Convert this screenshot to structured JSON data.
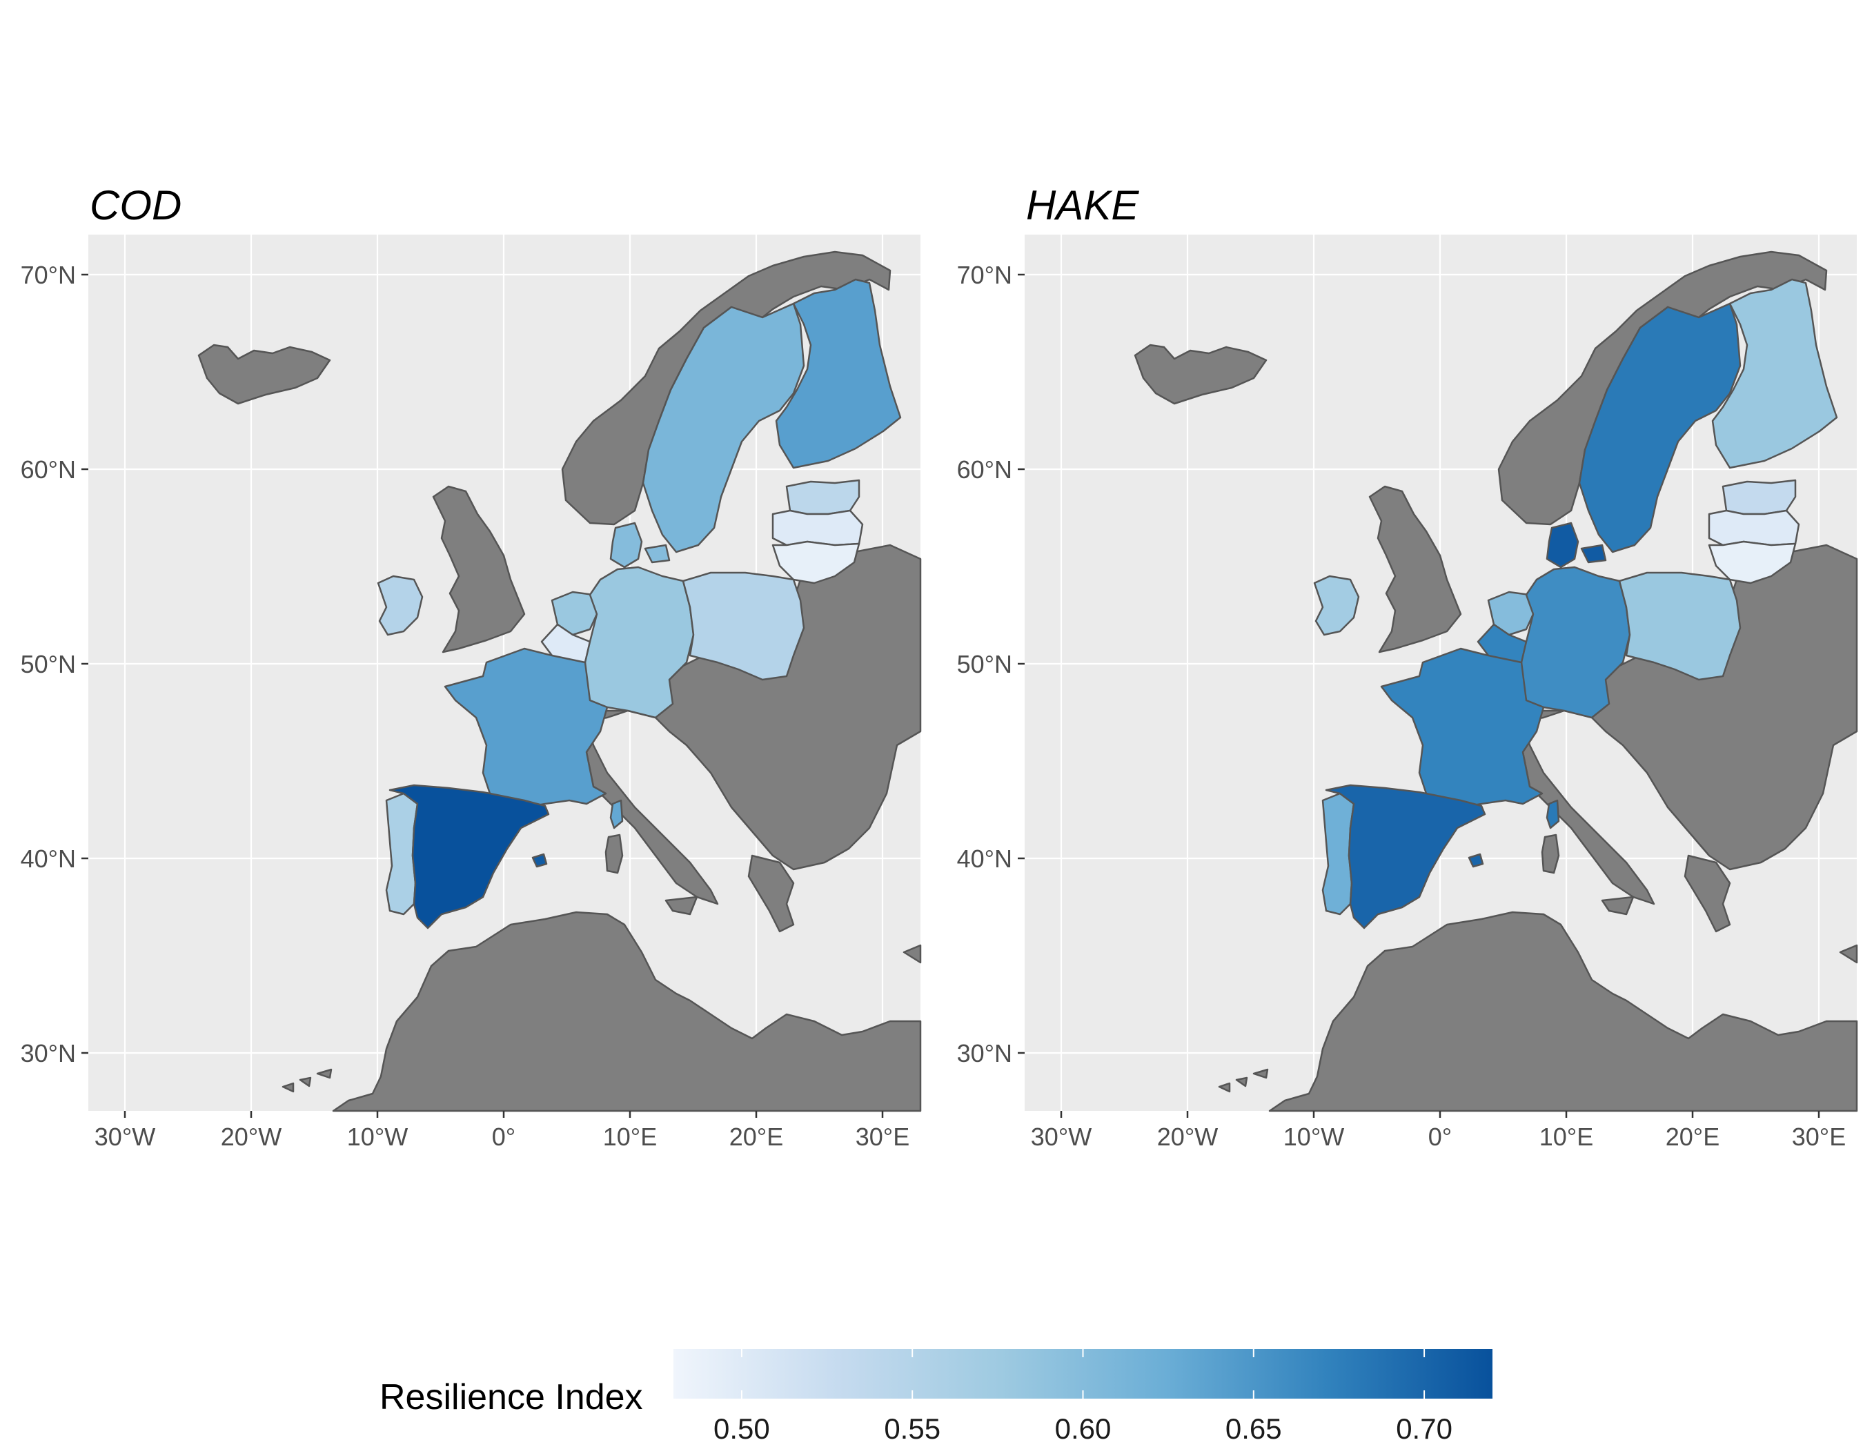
{
  "panels": [
    {
      "id": "cod",
      "title": "COD",
      "values": {
        "spain": 0.72,
        "portugal": 0.56,
        "france": 0.64,
        "ireland": 0.55,
        "belgium": 0.5,
        "netherlands": 0.58,
        "germany": 0.58,
        "denmark": 0.6,
        "poland": 0.55,
        "sweden": 0.61,
        "finland": 0.64,
        "estonia": 0.54,
        "latvia": 0.5,
        "lithuania": 0.49,
        "balearic": 0.71,
        "corsica": 0.63
      }
    },
    {
      "id": "hake",
      "title": "HAKE",
      "values": {
        "spain": 0.7,
        "portugal": 0.62,
        "france": 0.67,
        "ireland": 0.57,
        "belgium": 0.67,
        "netherlands": 0.6,
        "germany": 0.66,
        "denmark": 0.71,
        "poland": 0.58,
        "sweden": 0.68,
        "finland": 0.58,
        "estonia": 0.53,
        "latvia": 0.5,
        "lithuania": 0.49,
        "balearic": 0.7,
        "corsica": 0.68
      }
    }
  ],
  "axes": {
    "x_ticks": [
      "30°W",
      "20°W",
      "10°W",
      "0°",
      "10°E",
      "20°E",
      "30°E"
    ],
    "x_values": [
      -30,
      -20,
      -10,
      0,
      10,
      20,
      30
    ],
    "y_ticks": [
      "70°N",
      "60°N",
      "50°N",
      "40°N",
      "30°N"
    ],
    "y_values": [
      70,
      60,
      50,
      40,
      30
    ],
    "x_range": [
      -33,
      33
    ],
    "y_range": [
      27,
      72
    ]
  },
  "legend": {
    "title": "Resilience Index",
    "ticks": [
      "0.50",
      "0.55",
      "0.60",
      "0.65",
      "0.70"
    ],
    "tick_values": [
      0.5,
      0.55,
      0.6,
      0.65,
      0.7
    ],
    "range": [
      0.48,
      0.72
    ],
    "colors": [
      "#f0f5fc",
      "#c6dbef",
      "#9ecae1",
      "#6baed6",
      "#3182bd",
      "#08519c"
    ],
    "position": "bottom"
  },
  "colors": {
    "panel_background": "#ebebeb",
    "no_data_land": "#7f7f7f",
    "border": "#555555"
  }
}
